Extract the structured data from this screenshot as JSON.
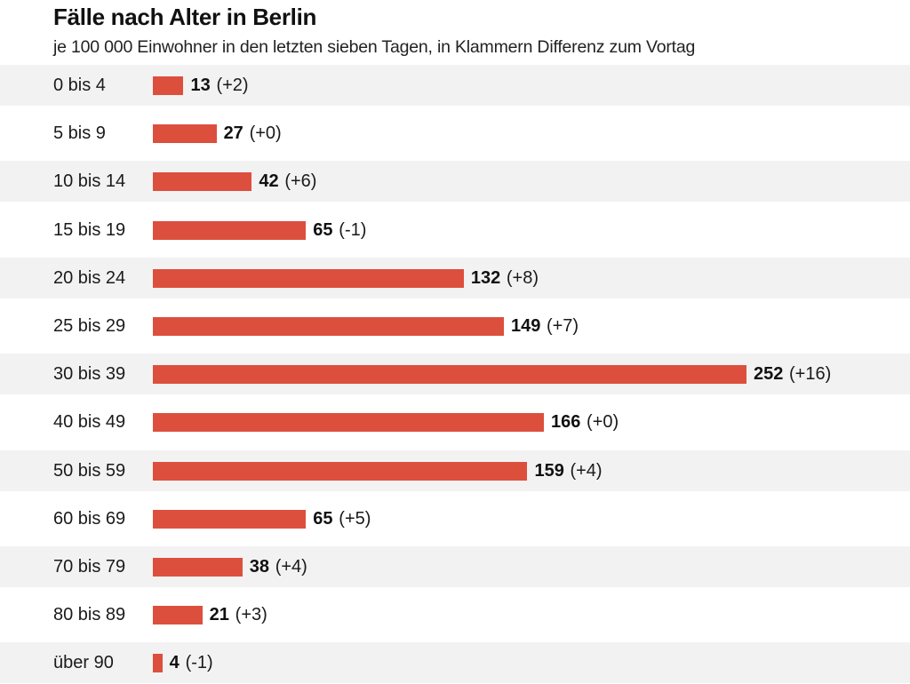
{
  "chart_data": {
    "type": "bar",
    "orientation": "horizontal",
    "title": "Fälle nach Alter in Berlin",
    "subtitle": "je 100 000 Einwohner in den letzten sieben Tagen, in Klammern Differenz zum Vortag",
    "categories": [
      "0 bis 4",
      "5 bis 9",
      "10 bis 14",
      "15 bis 19",
      "20 bis 24",
      "25 bis 29",
      "30 bis 39",
      "40 bis 49",
      "50 bis 59",
      "60 bis 69",
      "70 bis 79",
      "80 bis 89",
      "über 90"
    ],
    "values": [
      13,
      27,
      42,
      65,
      132,
      149,
      252,
      166,
      159,
      65,
      38,
      21,
      4
    ],
    "differences": [
      "(+2)",
      "(+0)",
      "(+6)",
      "(-1)",
      "(+8)",
      "(+7)",
      "(+16)",
      "(+0)",
      "(+4)",
      "(+5)",
      "(+4)",
      "(+3)",
      "(-1)"
    ],
    "xlim": [
      0,
      252
    ],
    "bar_color": "#dd4f3d",
    "row_shading_color": "#f2f2f2",
    "axes_visible": false,
    "grid": false,
    "legend": "none"
  }
}
